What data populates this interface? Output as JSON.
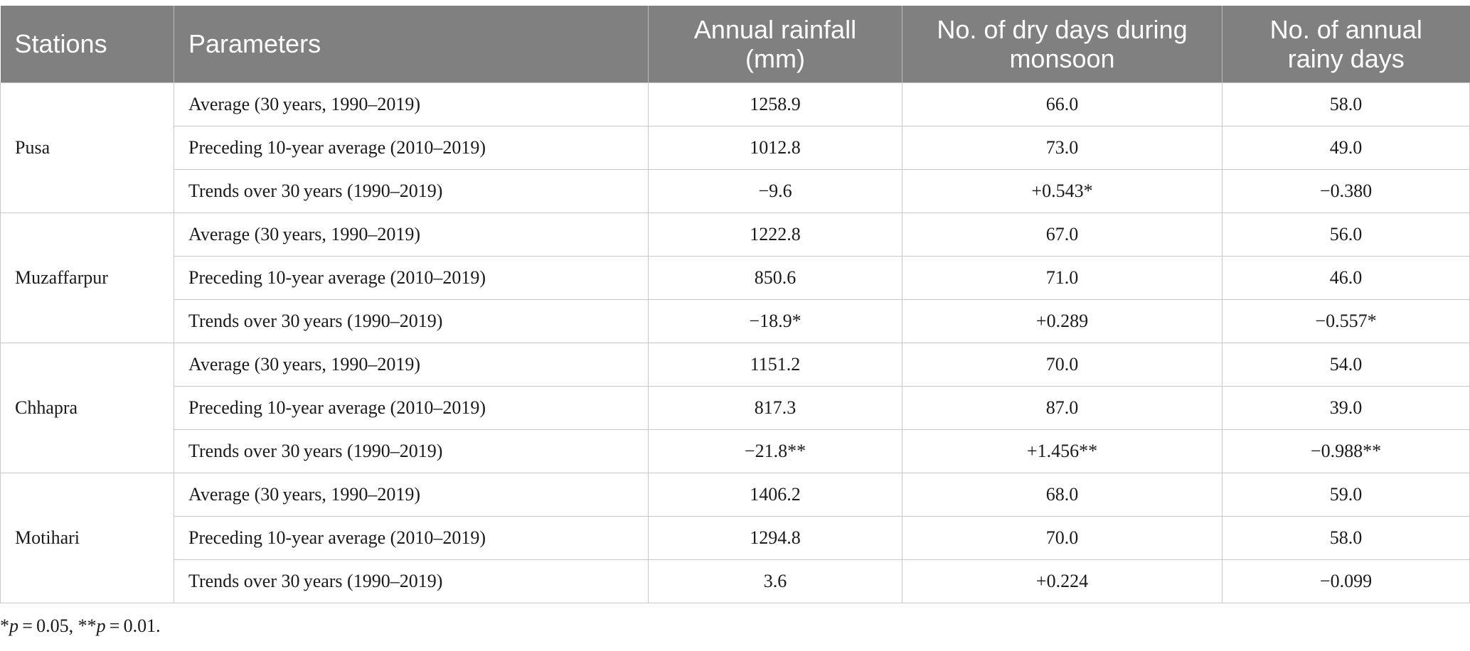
{
  "table": {
    "headers": {
      "stations": "Stations",
      "parameters": "Parameters",
      "annual_rainfall_line1": "Annual rainfall",
      "annual_rainfall_line2": "(mm)",
      "dry_days_line1": "No. of dry days during",
      "dry_days_line2": "monsoon",
      "rainy_days_line1": "No. of annual",
      "rainy_days_line2": "rainy days"
    },
    "stations": [
      {
        "name": "Pusa",
        "rows": [
          {
            "parameter": "Average (30 years, 1990–2019)",
            "rainfall": "1258.9",
            "dry_days": "66.0",
            "rainy_days": "58.0"
          },
          {
            "parameter": "Preceding 10-year average (2010–2019)",
            "rainfall": "1012.8",
            "dry_days": "73.0",
            "rainy_days": "49.0"
          },
          {
            "parameter": "Trends over 30 years (1990–2019)",
            "rainfall": "−9.6",
            "dry_days": "+0.543*",
            "rainy_days": "−0.380"
          }
        ]
      },
      {
        "name": "Muzaffarpur",
        "rows": [
          {
            "parameter": "Average (30 years, 1990–2019)",
            "rainfall": "1222.8",
            "dry_days": "67.0",
            "rainy_days": "56.0"
          },
          {
            "parameter": "Preceding 10-year average (2010–2019)",
            "rainfall": "850.6",
            "dry_days": "71.0",
            "rainy_days": "46.0"
          },
          {
            "parameter": "Trends over 30 years (1990–2019)",
            "rainfall": "−18.9*",
            "dry_days": "+0.289",
            "rainy_days": "−0.557*"
          }
        ]
      },
      {
        "name": "Chhapra",
        "rows": [
          {
            "parameter": "Average (30 years, 1990–2019)",
            "rainfall": "1151.2",
            "dry_days": "70.0",
            "rainy_days": "54.0"
          },
          {
            "parameter": "Preceding 10-year average (2010–2019)",
            "rainfall": "817.3",
            "dry_days": "87.0",
            "rainy_days": "39.0"
          },
          {
            "parameter": "Trends over 30 years (1990–2019)",
            "rainfall": "−21.8**",
            "dry_days": "+1.456**",
            "rainy_days": "−0.988**"
          }
        ]
      },
      {
        "name": "Motihari",
        "rows": [
          {
            "parameter": "Average (30 years, 1990–2019)",
            "rainfall": "1406.2",
            "dry_days": "68.0",
            "rainy_days": "59.0"
          },
          {
            "parameter": "Preceding 10-year average (2010–2019)",
            "rainfall": "1294.8",
            "dry_days": "70.0",
            "rainy_days": "58.0"
          },
          {
            "parameter": "Trends over 30 years (1990–2019)",
            "rainfall": "3.6",
            "dry_days": "+0.224",
            "rainy_days": "−0.099"
          }
        ]
      }
    ]
  },
  "footnote": {
    "star1": "*",
    "p1": "p",
    "val1": " = 0.05, ",
    "star2": "**",
    "p2": "p",
    "val2": " = 0.01."
  }
}
